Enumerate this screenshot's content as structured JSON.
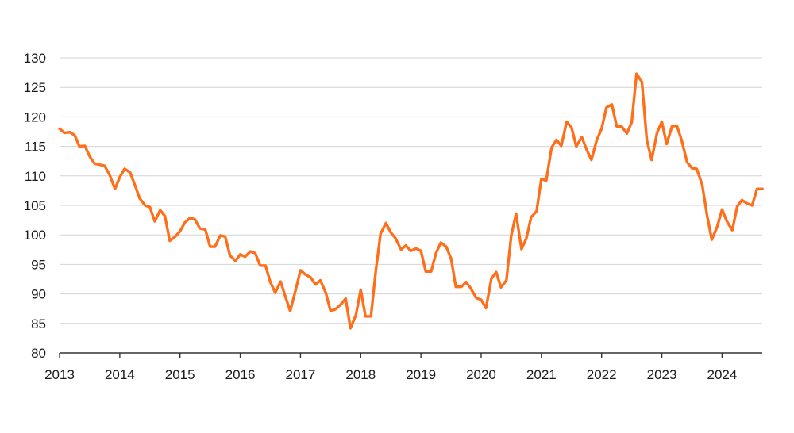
{
  "chart_data": {
    "type": "line",
    "title": "",
    "xlabel": "",
    "ylabel": "",
    "xlim": [
      2013,
      2024.667
    ],
    "ylim": [
      80,
      130
    ],
    "grid": true,
    "legend": "none",
    "y_ticks": [
      80,
      85,
      90,
      95,
      100,
      105,
      110,
      115,
      120,
      125,
      130
    ],
    "x_ticks": [
      2013,
      2014,
      2015,
      2016,
      2017,
      2018,
      2019,
      2020,
      2021,
      2022,
      2023,
      2024
    ],
    "colors": {
      "line": "#ff6f1a",
      "grid": "#d4d4d4",
      "axis": "#333333"
    },
    "series": [
      {
        "x": [
          2013.0,
          2013.08,
          2013.17,
          2013.25,
          2013.33,
          2013.42,
          2013.5,
          2013.58,
          2013.67,
          2013.75,
          2013.83,
          2013.92,
          2014.0,
          2014.08,
          2014.17,
          2014.25,
          2014.33,
          2014.42,
          2014.5,
          2014.58,
          2014.67,
          2014.75,
          2014.83,
          2014.92,
          2015.0,
          2015.08,
          2015.17,
          2015.25,
          2015.33,
          2015.42,
          2015.5,
          2015.58,
          2015.67,
          2015.75,
          2015.83,
          2015.92,
          2016.0,
          2016.08,
          2016.17,
          2016.25,
          2016.33,
          2016.42,
          2016.5,
          2016.58,
          2016.67,
          2016.75,
          2016.83,
          2016.92,
          2017.0,
          2017.08,
          2017.17,
          2017.25,
          2017.33,
          2017.42,
          2017.5,
          2017.58,
          2017.67,
          2017.75,
          2017.83,
          2017.92,
          2018.0,
          2018.08,
          2018.17,
          2018.25,
          2018.33,
          2018.42,
          2018.5,
          2018.58,
          2018.67,
          2018.75,
          2018.83,
          2018.92,
          2019.0,
          2019.08,
          2019.17,
          2019.25,
          2019.33,
          2019.42,
          2019.5,
          2019.58,
          2019.67,
          2019.75,
          2019.83,
          2019.92,
          2020.0,
          2020.08,
          2020.17,
          2020.25,
          2020.33,
          2020.42,
          2020.5,
          2020.58,
          2020.67,
          2020.75,
          2020.83,
          2020.92,
          2021.0,
          2021.08,
          2021.17,
          2021.25,
          2021.33,
          2021.42,
          2021.5,
          2021.58,
          2021.67,
          2021.75,
          2021.83,
          2021.92,
          2022.0,
          2022.08,
          2022.17,
          2022.25,
          2022.33,
          2022.42,
          2022.5,
          2022.58,
          2022.67,
          2022.75,
          2022.83,
          2022.92,
          2023.0,
          2023.08,
          2023.17,
          2023.25,
          2023.33,
          2023.42,
          2023.5,
          2023.58,
          2023.67,
          2023.75,
          2023.83,
          2023.92,
          2024.0,
          2024.08,
          2024.17,
          2024.25,
          2024.33,
          2024.42,
          2024.5,
          2024.58,
          2024.67
        ],
        "values": [
          118.0,
          117.3,
          117.4,
          116.9,
          115.0,
          115.1,
          113.3,
          112.1,
          111.9,
          111.7,
          110.2,
          107.8,
          109.8,
          111.2,
          110.6,
          108.5,
          106.2,
          105.0,
          104.7,
          102.3,
          104.2,
          103.2,
          99.0,
          99.7,
          100.6,
          102.1,
          102.9,
          102.6,
          101.1,
          100.9,
          98.0,
          98.0,
          99.9,
          99.7,
          96.5,
          95.6,
          96.7,
          96.3,
          97.2,
          96.9,
          94.8,
          94.8,
          92.0,
          90.2,
          92.1,
          89.5,
          87.1,
          90.7,
          94.0,
          93.3,
          92.8,
          91.6,
          92.3,
          90.2,
          87.1,
          87.4,
          88.2,
          89.2,
          84.2,
          86.4,
          90.7,
          86.2,
          86.2,
          93.8,
          100.2,
          102.0,
          100.4,
          99.4,
          97.5,
          98.2,
          97.3,
          97.7,
          97.3,
          93.8,
          93.8,
          96.9,
          98.7,
          98.0,
          96.0,
          91.2,
          91.2,
          92.0,
          90.9,
          89.3,
          89.0,
          87.6,
          92.6,
          93.7,
          91.1,
          92.3,
          99.9,
          103.6,
          97.6,
          99.4,
          103.0,
          104.0,
          109.5,
          109.2,
          114.8,
          116.1,
          115.1,
          119.2,
          118.2,
          115.0,
          116.6,
          114.5,
          112.7,
          116.1,
          118.0,
          121.6,
          122.1,
          118.4,
          118.4,
          117.2,
          119.1,
          127.3,
          125.9,
          116.1,
          112.7,
          117.3,
          119.2,
          115.4,
          118.4,
          118.5,
          116.0,
          112.3,
          111.3,
          111.2,
          108.5,
          103.4,
          99.2,
          101.4,
          104.3,
          102.3,
          100.8,
          104.8,
          105.9,
          105.3,
          105.0,
          107.8,
          107.8
        ]
      }
    ]
  }
}
